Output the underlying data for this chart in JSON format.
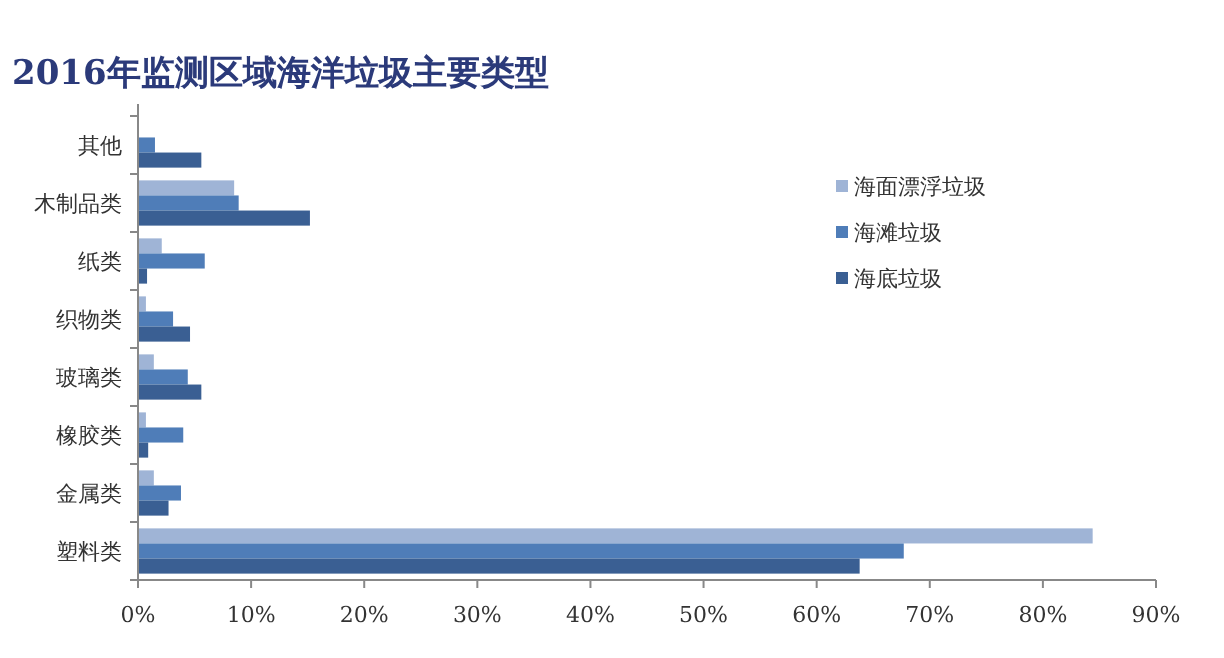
{
  "chart_data": {
    "type": "bar",
    "orientation": "horizontal",
    "title": "2016年监测区域海洋垃圾主要类型",
    "categories": [
      "其他",
      "木制品类",
      "纸类",
      "织物类",
      "玻璃类",
      "橡胶类",
      "金属类",
      "塑料类"
    ],
    "series": [
      {
        "name": "海面漂浮垃圾",
        "color": "#9fb4d6",
        "values": [
          null,
          8.5,
          2.1,
          0.7,
          1.4,
          0.7,
          1.4,
          84.4
        ]
      },
      {
        "name": "海滩垃圾",
        "color": "#4f7db8",
        "values": [
          1.5,
          8.9,
          5.9,
          3.1,
          4.4,
          4.0,
          3.8,
          67.7
        ]
      },
      {
        "name": "海底垃圾",
        "color": "#3a5f93",
        "values": [
          5.6,
          15.2,
          0.8,
          4.6,
          5.6,
          0.9,
          2.7,
          63.8
        ]
      }
    ],
    "xlim": [
      0,
      90
    ],
    "xticks": [
      {
        "value": 0,
        "label": "0%"
      },
      {
        "value": 10,
        "label": "10%"
      },
      {
        "value": 20,
        "label": "20%"
      },
      {
        "value": 30,
        "label": "30%"
      },
      {
        "value": 40,
        "label": "40%"
      },
      {
        "value": 50,
        "label": "50%"
      },
      {
        "value": 60,
        "label": "60%"
      },
      {
        "value": 70,
        "label": "70%"
      },
      {
        "value": 80,
        "label": "80%"
      },
      {
        "value": 90,
        "label": "90%"
      }
    ],
    "legend": "right",
    "grid": false
  }
}
